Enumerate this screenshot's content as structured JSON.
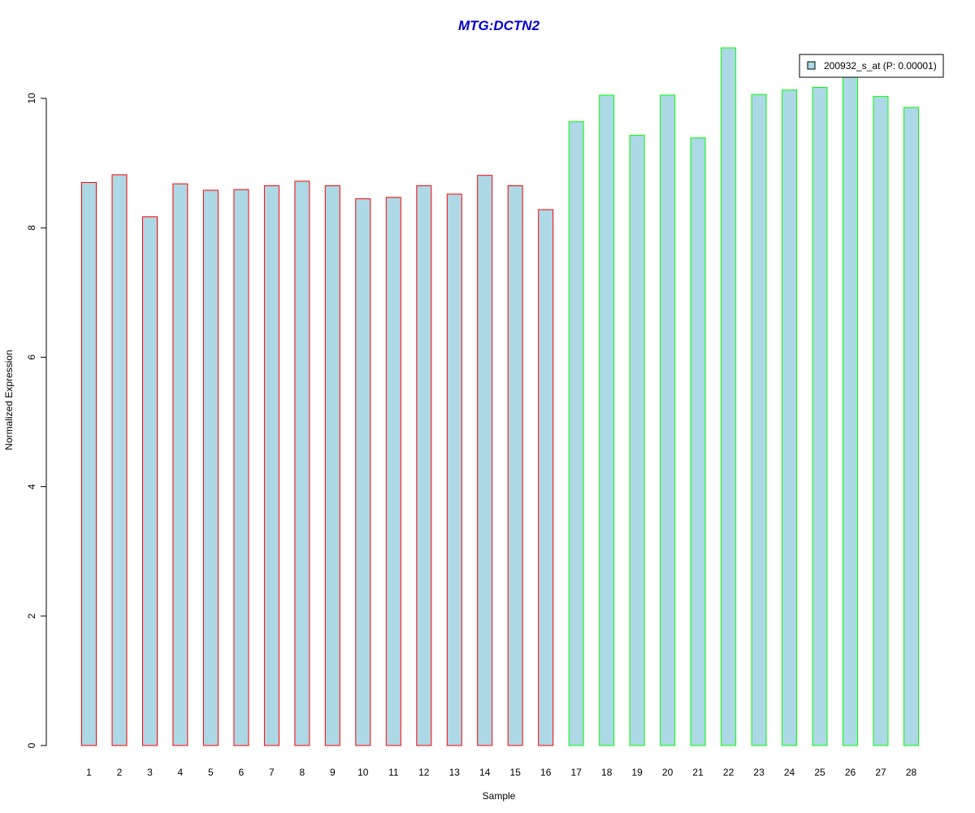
{
  "chart_data": {
    "type": "bar",
    "title": "MTG:DCTN2",
    "xlabel": "Sample",
    "ylabel": "Normalized Expression",
    "categories": [
      "1",
      "2",
      "3",
      "4",
      "5",
      "6",
      "7",
      "8",
      "9",
      "10",
      "11",
      "12",
      "13",
      "14",
      "15",
      "16",
      "17",
      "18",
      "19",
      "20",
      "21",
      "22",
      "23",
      "24",
      "25",
      "26",
      "27",
      "28"
    ],
    "series": [
      {
        "name": "200932_s_at (P: 0.00001)",
        "values": [
          8.7,
          8.82,
          8.17,
          8.68,
          8.58,
          8.59,
          8.65,
          8.72,
          8.65,
          8.45,
          8.47,
          8.65,
          8.52,
          8.81,
          8.65,
          8.28,
          9.64,
          10.05,
          9.43,
          10.05,
          9.39,
          10.78,
          10.06,
          10.13,
          10.17,
          10.34,
          10.03,
          9.86
        ]
      }
    ],
    "groups": [
      "red",
      "red",
      "red",
      "red",
      "red",
      "red",
      "red",
      "red",
      "red",
      "red",
      "red",
      "red",
      "red",
      "red",
      "red",
      "red",
      "green",
      "green",
      "green",
      "green",
      "green",
      "green",
      "green",
      "green",
      "green",
      "green",
      "green",
      "green"
    ],
    "ylim": [
      0,
      10.8
    ],
    "yticks": [
      "0",
      "2",
      "4",
      "6",
      "8",
      "10"
    ],
    "grid": false,
    "legend_position": "top-right",
    "colors": {
      "bar_fill": "#add8e6",
      "group_red": "#ff0000",
      "group_green": "#00ff00",
      "title": "#0000cc",
      "axis": "#000000"
    }
  }
}
